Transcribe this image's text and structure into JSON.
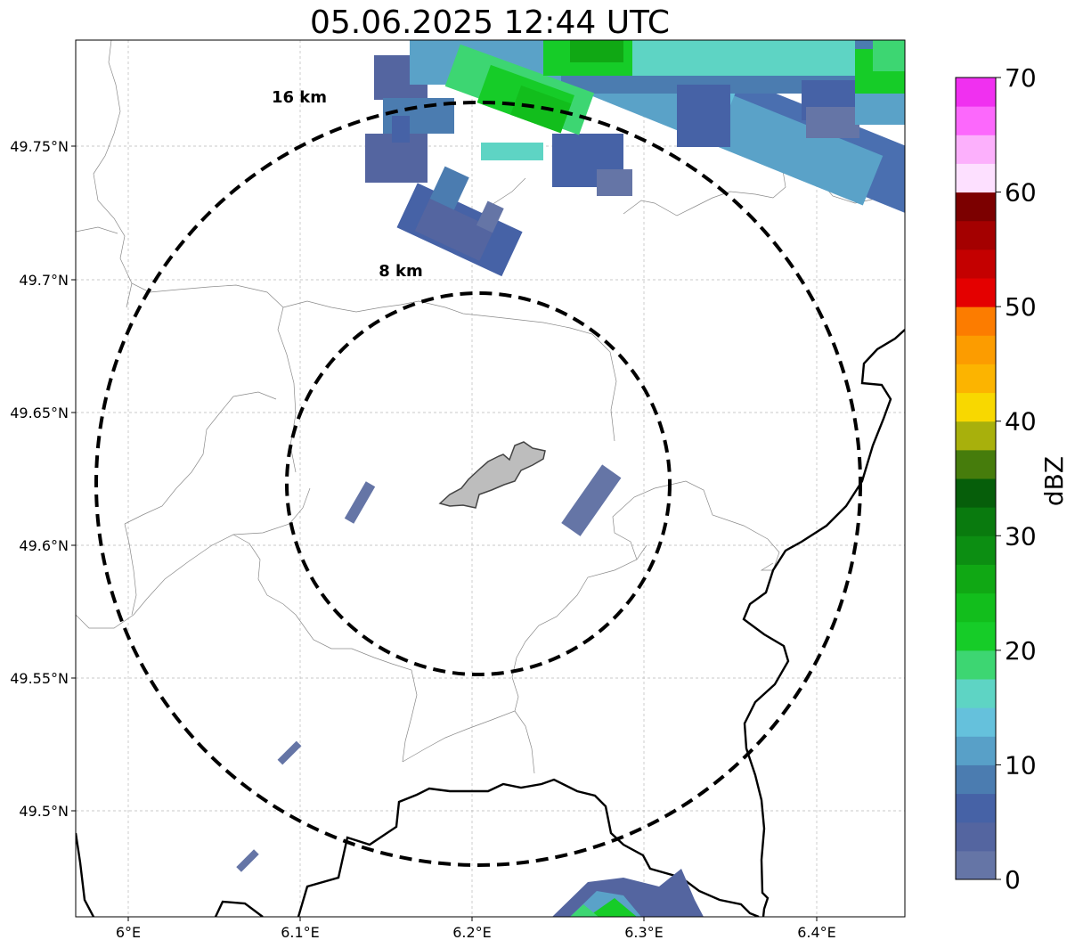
{
  "map": {
    "title": "05.06.2025 12:44 UTC",
    "x_ticks": [
      "6°E",
      "6.1°E",
      "6.2°E",
      "6.3°E",
      "6.4°E"
    ],
    "y_ticks": [
      "49.75°N",
      "49.7°N",
      "49.65°N",
      "49.6°N",
      "49.55°N",
      "49.5°N"
    ],
    "range_rings": [
      {
        "label": "16 km",
        "radius_km": 16
      },
      {
        "label": "8 km",
        "radius_km": 8
      }
    ],
    "grid": true
  },
  "colorbar": {
    "label": "dBZ",
    "ticks": [
      "0",
      "10",
      "20",
      "30",
      "40",
      "50",
      "60",
      "70"
    ],
    "min": 0,
    "max": 70,
    "step": 2.5,
    "colors": [
      "#6575a6",
      "#5465a0",
      "#4662a6",
      "#4b7cb0",
      "#58a0c8",
      "#65c1dc",
      "#5ed4c4",
      "#3dd672",
      "#16cc28",
      "#12be1c",
      "#10a814",
      "#0c8e12",
      "#097a0e",
      "#065e0a",
      "#467c0c",
      "#a8b00c",
      "#f8d800",
      "#fcb400",
      "#fc9c00",
      "#fc7c00",
      "#e40000",
      "#c40000",
      "#a40000",
      "#7c0000",
      "#fde0ff",
      "#fcb0fc",
      "#fc68fc",
      "#f030f0"
    ]
  }
}
